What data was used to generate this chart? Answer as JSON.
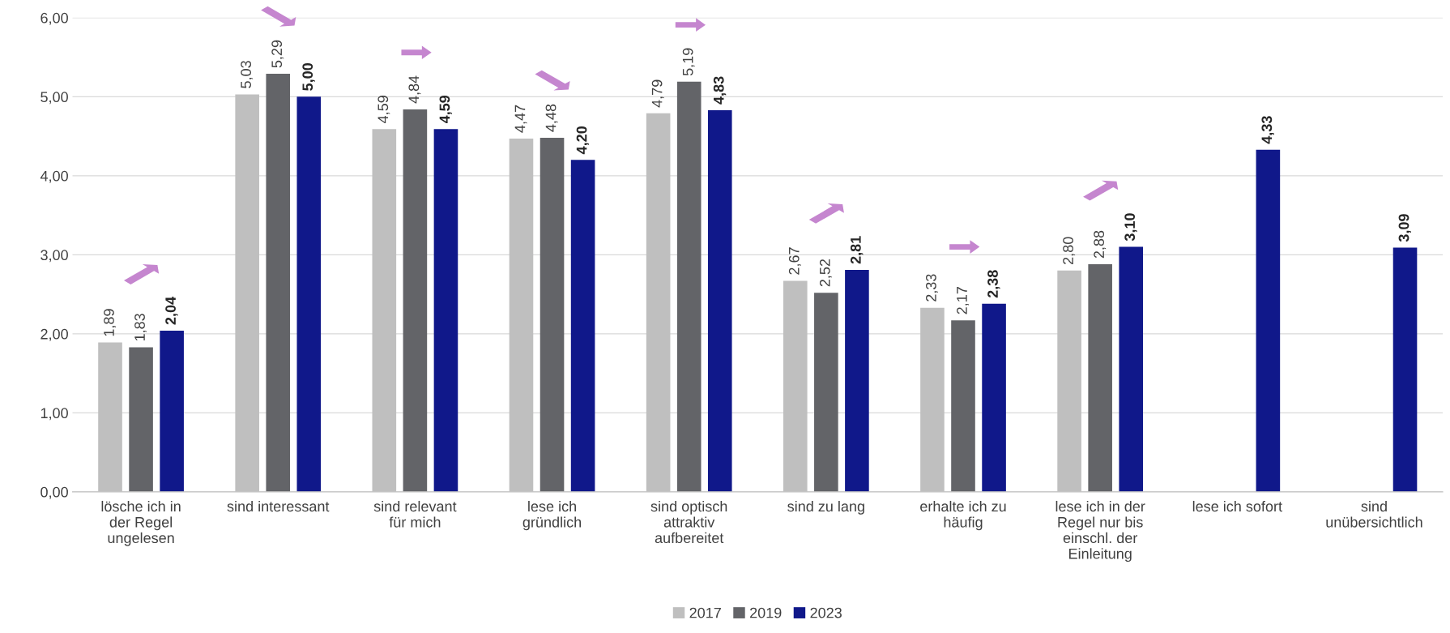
{
  "chart_data": {
    "type": "bar",
    "categories": [
      "lösche ich in\nder Regel\nungelesen",
      "sind interessant",
      "sind relevant\nfür mich",
      "lese ich\ngründlich",
      "sind optisch\nattraktiv\naufbereitet",
      "sind zu lang",
      "erhalte ich zu\nhäufig",
      "lese ich in der\nRegel nur bis\neinschl. der\nEinleitung",
      "lese ich sofort",
      "sind\nunübersichtlich"
    ],
    "series": [
      {
        "name": "2017",
        "color": "#bfbfbf",
        "values": [
          1.89,
          5.03,
          4.59,
          4.47,
          4.79,
          2.67,
          2.33,
          2.8,
          null,
          null
        ],
        "value_labels": [
          "1,89",
          "5,03",
          "4,59",
          "4,47",
          "4,79",
          "2,67",
          "2,33",
          "2,80",
          null,
          null
        ]
      },
      {
        "name": "2019",
        "color": "#636468",
        "values": [
          1.83,
          5.29,
          4.84,
          4.48,
          5.19,
          2.52,
          2.17,
          2.88,
          null,
          null
        ],
        "value_labels": [
          "1,83",
          "5,29",
          "4,84",
          "4,48",
          "5,19",
          "2,52",
          "2,17",
          "2,88",
          null,
          null
        ]
      },
      {
        "name": "2023",
        "color": "#10188a",
        "values": [
          2.04,
          5.0,
          4.59,
          4.2,
          4.83,
          2.81,
          2.38,
          3.1,
          4.33,
          3.09
        ],
        "value_labels": [
          "2,04",
          "5,00",
          "4,59",
          "4,20",
          "4,83",
          "2,81",
          "2,38",
          "3,10",
          "4,33",
          "3,09"
        ]
      }
    ],
    "ylim": [
      0,
      6
    ],
    "yticks": [
      {
        "value": 0,
        "label": "0,00"
      },
      {
        "value": 1,
        "label": "1,00"
      },
      {
        "value": 2,
        "label": "2,00"
      },
      {
        "value": 3,
        "label": "3,00"
      },
      {
        "value": 4,
        "label": "4,00"
      },
      {
        "value": 5,
        "label": "5,00"
      },
      {
        "value": 6,
        "label": "6,00"
      }
    ],
    "grid": "y",
    "legend": "bottom"
  }
}
